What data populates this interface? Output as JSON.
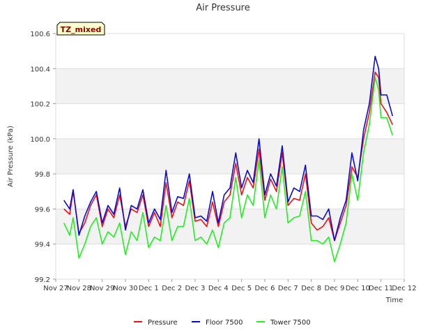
{
  "chart_data": {
    "type": "line",
    "title": "Air Pressure",
    "xlabel": "Time",
    "ylabel": "Air Pressure (kPa)",
    "badge": "TZ_mixed",
    "ylim": [
      99.2,
      100.6
    ],
    "yticks": [
      "99.2",
      "99.4",
      "99.6",
      "99.8",
      "100.0",
      "100.2",
      "100.4",
      "100.6"
    ],
    "xlim": [
      0,
      15
    ],
    "xticks": [
      "Nov 27",
      "Nov 28",
      "Nov 29",
      "Nov 30",
      "Dec 1",
      "Dec 2",
      "Dec 3",
      "Dec 4",
      "Dec 5",
      "Dec 6",
      "Dec 7",
      "Dec 8",
      "Dec 9",
      "Dec 10",
      "Dec 11",
      "Dec 12"
    ],
    "grid": true,
    "legend_position": "bottom",
    "x": [
      0.35,
      0.6,
      0.75,
      1.0,
      1.25,
      1.5,
      1.75,
      2.0,
      2.25,
      2.5,
      2.75,
      3.0,
      3.25,
      3.5,
      3.75,
      4.0,
      4.25,
      4.5,
      4.75,
      5.0,
      5.25,
      5.5,
      5.75,
      6.0,
      6.25,
      6.5,
      6.75,
      7.0,
      7.25,
      7.5,
      7.75,
      8.0,
      8.25,
      8.5,
      8.75,
      9.0,
      9.25,
      9.5,
      9.75,
      10.0,
      10.25,
      10.5,
      10.75,
      11.0,
      11.25,
      11.5,
      11.75,
      12.0,
      12.25,
      12.5,
      12.75,
      13.0,
      13.25,
      13.5,
      13.75,
      13.9,
      14.0,
      14.25,
      14.5
    ],
    "series": [
      {
        "name": "Pressure",
        "color": "#ee1111",
        "values": [
          99.6,
          99.57,
          99.7,
          99.46,
          99.52,
          99.62,
          99.68,
          99.5,
          99.6,
          99.55,
          99.68,
          99.5,
          99.6,
          99.58,
          99.68,
          99.5,
          99.58,
          99.5,
          99.75,
          99.55,
          99.64,
          99.62,
          99.76,
          99.53,
          99.54,
          99.5,
          99.64,
          99.5,
          99.64,
          99.68,
          99.86,
          99.68,
          99.78,
          99.72,
          99.94,
          99.65,
          99.77,
          99.7,
          99.92,
          99.62,
          99.66,
          99.65,
          99.8,
          99.52,
          99.48,
          99.5,
          99.55,
          99.42,
          99.52,
          99.62,
          99.84,
          99.78,
          100.0,
          100.15,
          100.38,
          100.35,
          100.2,
          100.15,
          100.08
        ]
      },
      {
        "name": "Floor 7500",
        "color": "#0a0ad0",
        "values": [
          99.65,
          99.6,
          99.71,
          99.45,
          99.56,
          99.64,
          99.7,
          99.52,
          99.62,
          99.57,
          99.72,
          99.48,
          99.62,
          99.6,
          99.71,
          99.52,
          99.6,
          99.54,
          99.82,
          99.58,
          99.67,
          99.66,
          99.8,
          99.55,
          99.56,
          99.53,
          99.7,
          99.52,
          99.68,
          99.72,
          99.92,
          99.72,
          99.82,
          99.75,
          100.0,
          99.68,
          99.8,
          99.73,
          99.96,
          99.64,
          99.72,
          99.7,
          99.85,
          99.56,
          99.56,
          99.54,
          99.6,
          99.42,
          99.55,
          99.65,
          99.92,
          99.76,
          100.05,
          100.2,
          100.47,
          100.4,
          100.25,
          100.25,
          100.13
        ]
      },
      {
        "name": "Tower 7500",
        "color": "#22ee22",
        "values": [
          99.52,
          99.45,
          99.55,
          99.32,
          99.4,
          99.5,
          99.55,
          99.4,
          99.47,
          99.44,
          99.52,
          99.34,
          99.47,
          99.42,
          99.58,
          99.38,
          99.44,
          99.42,
          99.62,
          99.42,
          99.5,
          99.5,
          99.66,
          99.42,
          99.44,
          99.4,
          99.48,
          99.38,
          99.52,
          99.55,
          99.78,
          99.55,
          99.68,
          99.62,
          99.88,
          99.55,
          99.68,
          99.6,
          99.84,
          99.52,
          99.55,
          99.56,
          99.7,
          99.42,
          99.42,
          99.4,
          99.44,
          99.3,
          99.4,
          99.52,
          99.8,
          99.65,
          99.92,
          100.08,
          100.35,
          100.28,
          100.12,
          100.12,
          100.02
        ]
      }
    ]
  }
}
